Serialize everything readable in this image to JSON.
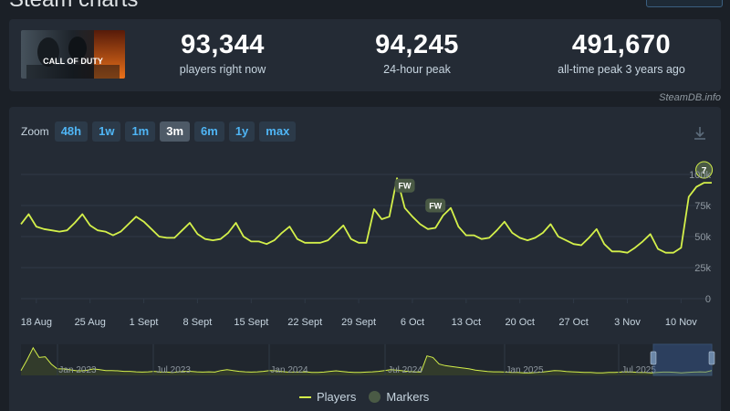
{
  "page": {
    "title": "Steam charts"
  },
  "stats": [
    {
      "value": "93,344",
      "label": "players right now"
    },
    {
      "value": "94,245",
      "label": "24-hour peak"
    },
    {
      "value": "491,670",
      "label": "all-time peak 3 years ago"
    }
  ],
  "game": {
    "thumb_text": "CALL OF DUTY"
  },
  "credit": "SteamDB.info",
  "zoom": {
    "label": "Zoom",
    "options": [
      "48h",
      "1w",
      "1m",
      "3m",
      "6m",
      "1y",
      "max"
    ],
    "active": "3m"
  },
  "legend": {
    "players": "Players",
    "markers": "Markers"
  },
  "colors": {
    "line": "#d4f04a",
    "marker": "#4a5a45",
    "background": "#242b35",
    "accent": "#4fb5f5"
  },
  "chart_data": {
    "type": "line",
    "series": [
      {
        "name": "Players",
        "x": [
          "Aug 16",
          "Aug 17",
          "Aug 18",
          "Aug 19",
          "Aug 20",
          "Aug 21",
          "Aug 22",
          "Aug 23",
          "Aug 24",
          "Aug 25",
          "Aug 26",
          "Aug 27",
          "Aug 28",
          "Aug 29",
          "Aug 30",
          "Aug 31",
          "Sep 1",
          "Sep 2",
          "Sep 3",
          "Sep 4",
          "Sep 5",
          "Sep 6",
          "Sep 7",
          "Sep 8",
          "Sep 9",
          "Sep 10",
          "Sep 11",
          "Sep 12",
          "Sep 13",
          "Sep 14",
          "Sep 15",
          "Sep 16",
          "Sep 17",
          "Sep 18",
          "Sep 19",
          "Sep 20",
          "Sep 21",
          "Sep 22",
          "Sep 23",
          "Sep 24",
          "Sep 25",
          "Sep 26",
          "Sep 27",
          "Sep 28",
          "Sep 29",
          "Sep 30",
          "Oct 1",
          "Oct 2",
          "Oct 3",
          "Oct 4",
          "Oct 5",
          "Oct 6",
          "Oct 7",
          "Oct 8",
          "Oct 9",
          "Oct 10",
          "Oct 11",
          "Oct 12",
          "Oct 13",
          "Oct 14",
          "Oct 15",
          "Oct 16",
          "Oct 17",
          "Oct 18",
          "Oct 19",
          "Oct 20",
          "Oct 21",
          "Oct 22",
          "Oct 23",
          "Oct 24",
          "Oct 25",
          "Oct 26",
          "Oct 27",
          "Oct 28",
          "Oct 29",
          "Oct 30",
          "Oct 31",
          "Nov 1",
          "Nov 2",
          "Nov 3",
          "Nov 4",
          "Nov 5",
          "Nov 6",
          "Nov 7",
          "Nov 8",
          "Nov 9",
          "Nov 10",
          "Nov 11",
          "Nov 12",
          "Nov 13",
          "Nov 14"
        ],
        "values": [
          60000,
          68000,
          58000,
          56000,
          55000,
          54000,
          55000,
          61000,
          68000,
          59000,
          55000,
          54000,
          51000,
          54000,
          60000,
          66000,
          62000,
          56000,
          50000,
          49000,
          49000,
          55000,
          61000,
          52000,
          48000,
          47000,
          48000,
          53000,
          61000,
          50000,
          46000,
          46000,
          44000,
          47000,
          53000,
          58000,
          48000,
          45000,
          45000,
          45000,
          47000,
          53000,
          59000,
          48000,
          45000,
          45000,
          72000,
          64000,
          66000,
          97000,
          73000,
          66000,
          60000,
          56000,
          57000,
          67000,
          73000,
          58000,
          51000,
          51000,
          48000,
          49000,
          55000,
          62000,
          53000,
          49000,
          47000,
          49000,
          53000,
          60000,
          50000,
          47000,
          44000,
          43000,
          49000,
          56000,
          44000,
          38000,
          38000,
          37000,
          41000,
          46000,
          52000,
          40000,
          37000,
          37000,
          41000,
          82000,
          90000,
          93344,
          93344
        ]
      }
    ],
    "markers": [
      {
        "label": "FW",
        "x": "Oct 5"
      },
      {
        "label": "FW",
        "x": "Oct 9"
      },
      {
        "label": "7",
        "x": "Nov 13"
      }
    ],
    "x_tick_labels": [
      "18 Aug",
      "25 Aug",
      "1 Sept",
      "8 Sept",
      "15 Sept",
      "22 Sept",
      "29 Sept",
      "6 Oct",
      "13 Oct",
      "20 Oct",
      "27 Oct",
      "3 Nov",
      "10 Nov"
    ],
    "y_ticks": [
      0,
      25000,
      50000,
      75000,
      100000
    ],
    "y_tick_labels": [
      "0",
      "25k",
      "50k",
      "75k",
      "100k"
    ],
    "ylim": [
      0,
      100000
    ],
    "grid": true,
    "legend": "bottom",
    "navigator": {
      "labels": [
        "Jan 2023",
        "Jul 2023",
        "Jan 2024",
        "Jul 2024",
        "Jan 2025",
        "Jul 2025"
      ],
      "values": [
        30,
        95,
        170,
        110,
        115,
        70,
        40,
        40,
        35,
        30,
        28,
        32,
        40,
        35,
        30,
        30,
        28,
        25,
        25,
        22,
        20,
        22,
        25,
        20,
        20,
        18,
        22,
        25,
        25,
        22,
        20,
        22,
        20,
        30,
        35,
        30,
        25,
        22,
        20,
        22,
        25,
        30,
        28,
        24,
        20,
        20,
        20,
        22,
        18,
        18,
        20,
        25,
        28,
        24,
        20,
        18,
        18,
        20,
        22,
        25,
        30,
        35,
        32,
        28,
        24,
        22,
        20,
        120,
        110,
        70,
        60,
        55,
        50,
        45,
        40,
        32,
        28,
        24,
        22,
        22,
        20,
        18,
        18,
        16,
        16,
        18,
        20,
        25,
        30,
        28,
        24,
        22,
        20,
        18,
        18,
        16,
        16,
        18,
        18,
        20,
        22,
        20,
        18,
        18,
        16,
        18,
        20,
        20,
        18,
        16,
        18,
        20,
        22,
        20,
        30
      ]
    }
  }
}
